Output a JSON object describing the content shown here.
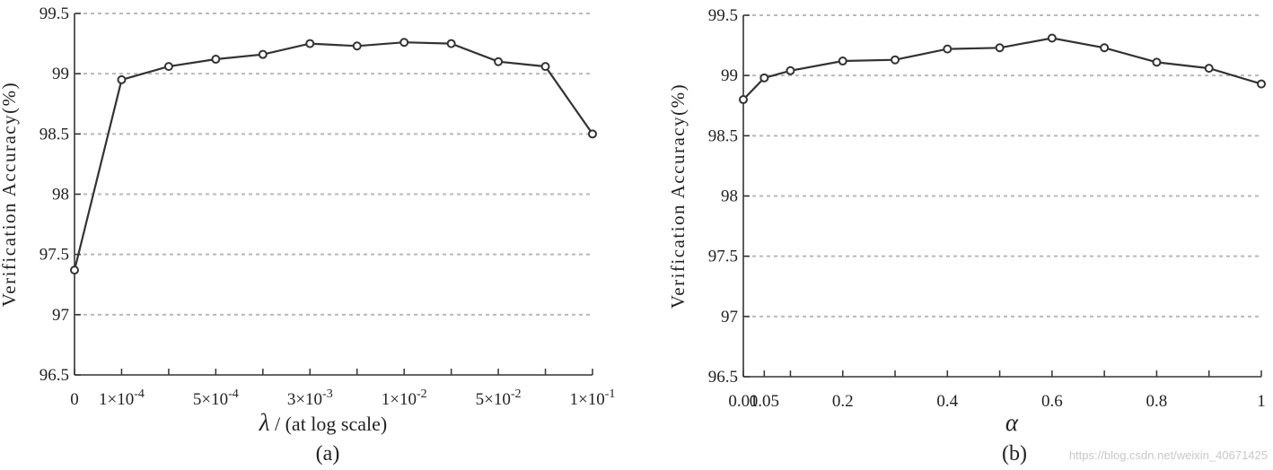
{
  "chart_data": [
    {
      "type": "line",
      "caption": "(a)",
      "xlabel_symbol": "λ",
      "xlabel_rest": " /  (at log scale)",
      "ylabel": "Verification Accuracy(%)",
      "ylim": [
        96.5,
        99.5
      ],
      "yticks": [
        "96.5",
        "97",
        "97.5",
        "98",
        "98.5",
        "99",
        "99.5"
      ],
      "grid": "horizontal dashed",
      "x_ticks": [
        {
          "base": "0",
          "exp": ""
        },
        {
          "base": "1×10",
          "exp": "-4"
        },
        {
          "base": "5×10",
          "exp": "-4"
        },
        {
          "base": "3×10",
          "exp": "-3"
        },
        {
          "base": "1×10",
          "exp": "-2"
        },
        {
          "base": "5×10",
          "exp": "-2"
        },
        {
          "base": "1×10",
          "exp": "-1"
        }
      ],
      "x": [
        0,
        1,
        2,
        3,
        4,
        5,
        6,
        7,
        8,
        9,
        10,
        11
      ],
      "series": [
        {
          "values": [
            97.37,
            98.95,
            99.06,
            99.12,
            99.16,
            99.25,
            99.23,
            99.26,
            99.25,
            99.1,
            99.06,
            98.5
          ]
        }
      ]
    },
    {
      "type": "line",
      "caption": "(b)",
      "xlabel_symbol": "α",
      "xlabel_rest": "",
      "ylabel": "Verification Accuracy(%)",
      "ylim": [
        96.5,
        99.5
      ],
      "yticks": [
        "96.5",
        "97",
        "97.5",
        "98",
        "98.5",
        "99",
        "99.5"
      ],
      "grid": "horizontal dashed",
      "x_ticks": [
        "0.01",
        "0.05",
        "0.2",
        "0.4",
        "0.6",
        "0.8",
        "1"
      ],
      "x": [
        0.01,
        0.05,
        0.1,
        0.2,
        0.3,
        0.4,
        0.5,
        0.6,
        0.7,
        0.8,
        0.9,
        1.0
      ],
      "series": [
        {
          "values": [
            98.8,
            98.98,
            99.04,
            99.12,
            99.13,
            99.22,
            99.23,
            99.31,
            99.23,
            99.11,
            99.06,
            98.93
          ]
        }
      ]
    }
  ],
  "watermark": "https://blog.csdn.net/weixin_40671425"
}
